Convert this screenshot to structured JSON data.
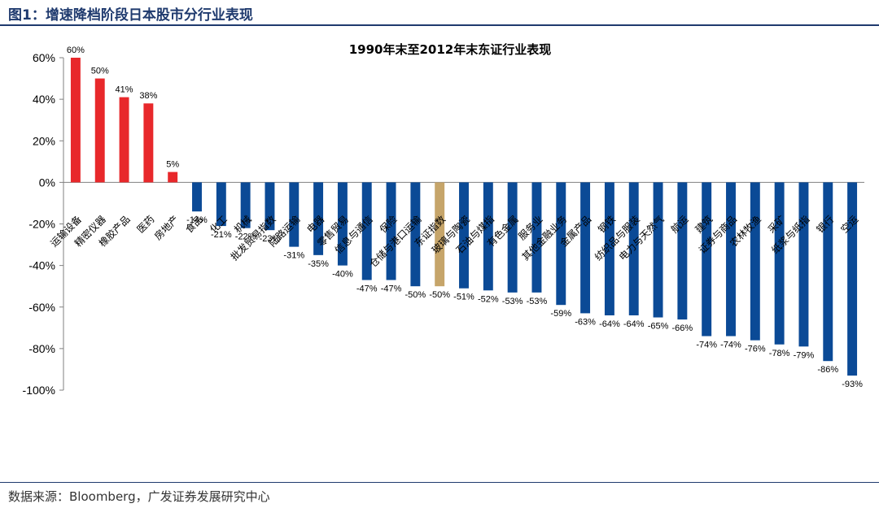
{
  "figure_title": "图1：增速降档阶段日本股市分行业表现",
  "source": "数据来源：Bloomberg，广发证券发展研究中心",
  "colors": {
    "positive": "#e8282b",
    "negative": "#0b4a96",
    "benchmark": "#c6a56a",
    "accent": "#1f3a6e"
  },
  "chart_data": {
    "type": "bar",
    "title": "1990年末至2012年末东证行业表现",
    "xlabel": "",
    "ylabel": "",
    "ylim": [
      -100,
      60
    ],
    "yticks": [
      60,
      40,
      20,
      0,
      -20,
      -40,
      -60,
      -80,
      -100
    ],
    "ytick_labels": [
      "60%",
      "40%",
      "20%",
      "0%",
      "-20%",
      "-40%",
      "-60%",
      "-80%",
      "-100%"
    ],
    "grid": false,
    "categories": [
      "运输设备",
      "精密仪器",
      "橡胶产品",
      "医药",
      "房地产",
      "食品",
      "化工",
      "机械",
      "批发贸易指数",
      "陆路运输",
      "电器",
      "零售贸易",
      "信息与通信",
      "保险",
      "仓储与港口运输",
      "东证指数",
      "玻璃与陶瓷",
      "石油与煤指",
      "有色金属",
      "服务业",
      "其他金融业务",
      "金属产品",
      "钢铁",
      "纺织品与服装",
      "电力与天然气",
      "航运",
      "建筑",
      "证券与商品",
      "农林牧渔",
      "采矿",
      "纸浆与纸指",
      "银行",
      "空运"
    ],
    "values": [
      60,
      50,
      41,
      38,
      5,
      -14,
      -21,
      -22,
      -23,
      -31,
      -35,
      -40,
      -47,
      -47,
      -50,
      -50,
      -51,
      -52,
      -53,
      -53,
      -59,
      -63,
      -64,
      -64,
      -65,
      -66,
      -74,
      -74,
      -76,
      -78,
      -79,
      -86,
      -93
    ],
    "data_labels": [
      "60%",
      "50%",
      "41%",
      "38%",
      "5%",
      "-14%",
      "-21%",
      "-22%",
      "-23%",
      "-31%",
      "-35%",
      "-40%",
      "-47%",
      "-47%",
      "-50%",
      "-50%",
      "-51%",
      "-52%",
      "-53%",
      "-53%",
      "-59%",
      "-63%",
      "-64%",
      "-64%",
      "-65%",
      "-66%",
      "-74%",
      "-74%",
      "-76%",
      "-78%",
      "-79%",
      "-86%",
      "-93%"
    ],
    "highlight_category": "东证指数"
  }
}
